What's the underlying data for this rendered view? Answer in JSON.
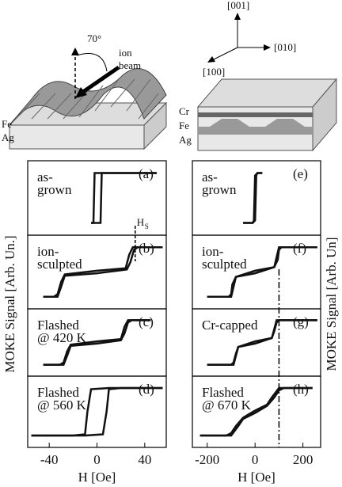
{
  "illustration": {
    "angle": "70°",
    "beam": [
      "ion",
      "beam"
    ],
    "left_layers": [
      "Fe",
      "Ag"
    ],
    "right_layers": [
      "Cr",
      "Fe",
      "Ag"
    ],
    "axes": [
      "[001]",
      "[010]",
      "[100]"
    ]
  },
  "chart_data": [
    {
      "type": "line",
      "ylabel": "MOKE Signal [Arb. Un.]",
      "xlabel": "H [Oe]",
      "xlim": [
        -58,
        58
      ],
      "xticks": [
        -40,
        0,
        40
      ],
      "ylim": [
        -1.3,
        1.3
      ],
      "color": "#111111",
      "marker": {
        "x": 32,
        "label": "H",
        "subscript": "S"
      },
      "panels": [
        {
          "label": "(a)",
          "annotation": [
            "as-",
            "grown"
          ],
          "series": [
            {
              "x": [
                -5,
                0,
                3,
                4,
                5,
                20,
                50
              ],
              "values": [
                -1,
                -1,
                -1,
                1,
                1,
                1,
                1
              ]
            },
            {
              "x": [
                50,
                20,
                0,
                -2,
                -3,
                -5
              ],
              "values": [
                1,
                1,
                1,
                1,
                -1,
                -1
              ]
            }
          ]
        },
        {
          "label": "(b)",
          "annotation": [
            "ion-",
            "sculpted"
          ],
          "series": [
            {
              "x": [
                -45,
                -33,
                -30,
                -27,
                0,
                25,
                28,
                31,
                34,
                55
              ],
              "values": [
                -1,
                -1,
                -0.6,
                -0.15,
                -0.05,
                0.1,
                0.4,
                0.9,
                1,
                1
              ]
            },
            {
              "x": [
                55,
                30,
                27,
                24,
                0,
                -27,
                -30,
                -33,
                -36,
                -45
              ],
              "values": [
                1,
                1,
                0.7,
                0.15,
                0.05,
                -0.1,
                -0.4,
                -0.9,
                -1,
                -1
              ]
            }
          ]
        },
        {
          "label": "(c)",
          "annotation": [
            "Flashed",
            "@ 420 K"
          ],
          "series": [
            {
              "x": [
                -45,
                -28,
                -25,
                -22,
                0,
                20,
                23,
                26,
                29,
                45
              ],
              "values": [
                -1,
                -1,
                -0.6,
                -0.15,
                -0.05,
                0.1,
                0.4,
                0.9,
                1,
                1
              ]
            },
            {
              "x": [
                45,
                26,
                23,
                20,
                0,
                -22,
                -25,
                -28,
                -31,
                -45
              ],
              "values": [
                1,
                1,
                0.7,
                0.15,
                0.05,
                -0.1,
                -0.4,
                -0.9,
                -1,
                -1
              ]
            }
          ]
        },
        {
          "label": "(d)",
          "annotation": [
            "Flashed",
            "@ 560 K"
          ],
          "series": [
            {
              "x": [
                -55,
                -10,
                5,
                8,
                10,
                20,
                55
              ],
              "values": [
                -1,
                -1,
                -0.95,
                0,
                0.95,
                1,
                1
              ]
            },
            {
              "x": [
                55,
                10,
                -5,
                -8,
                -10,
                -20,
                -55
              ],
              "values": [
                1,
                1,
                0.95,
                0,
                -0.95,
                -1,
                -1
              ]
            }
          ]
        }
      ]
    },
    {
      "type": "line",
      "ylabel": "MOKE Signal [Arb. Un]",
      "xlabel": "H [Oe]",
      "xlim": [
        -262,
        274
      ],
      "xticks": [
        -200,
        0,
        200
      ],
      "ylim": [
        -1.3,
        1.3
      ],
      "color": "#111111",
      "marker": {
        "x": 100
      },
      "panels": [
        {
          "label": "(e)",
          "annotation": [
            "as-",
            "grown"
          ],
          "series": [
            {
              "x": [
                -50,
                -10,
                0,
                5,
                10,
                30
              ],
              "values": [
                -1,
                -1,
                -0.9,
                0.9,
                1,
                1
              ]
            },
            {
              "x": [
                30,
                10,
                0,
                -5,
                -10,
                -50
              ],
              "values": [
                1,
                1,
                0.9,
                -0.9,
                -1,
                -1
              ]
            }
          ]
        },
        {
          "label": "(f)",
          "annotation": [
            "ion-",
            "sculpted"
          ],
          "series": [
            {
              "x": [
                -200,
                -100,
                -90,
                -80,
                0,
                80,
                95,
                100,
                110,
                260
              ],
              "values": [
                -1,
                -1,
                -0.6,
                -0.2,
                -0.05,
                0.2,
                0.5,
                0.9,
                1,
                1
              ]
            },
            {
              "x": [
                260,
                100,
                90,
                80,
                0,
                -80,
                -95,
                -100,
                -110,
                -200
              ],
              "values": [
                1,
                1,
                0.6,
                0.2,
                0.05,
                -0.2,
                -0.5,
                -0.9,
                -1,
                -1
              ]
            }
          ]
        },
        {
          "label": "(g)",
          "annotation": [
            "Cr-capped"
          ],
          "series": [
            {
              "x": [
                -200,
                -90,
                -80,
                -70,
                0,
                70,
                80,
                90,
                100,
                260
              ],
              "values": [
                -1,
                -1,
                -0.6,
                -0.2,
                -0.05,
                0.2,
                0.5,
                0.9,
                1,
                1
              ]
            },
            {
              "x": [
                260,
                90,
                80,
                70,
                0,
                -70,
                -80,
                -90,
                -100,
                -200
              ],
              "values": [
                1,
                1,
                0.6,
                0.2,
                0.05,
                -0.2,
                -0.5,
                -0.9,
                -1,
                -1
              ]
            }
          ]
        },
        {
          "label": "(h)",
          "annotation": [
            "Flashed",
            "@ 670 K"
          ],
          "series": [
            {
              "x": [
                -230,
                -100,
                -70,
                -50,
                0,
                50,
                80,
                100,
                120,
                240
              ],
              "values": [
                -1,
                -1,
                -0.6,
                -0.3,
                -0.05,
                0.25,
                0.6,
                0.9,
                1,
                1
              ]
            },
            {
              "x": [
                240,
                100,
                70,
                50,
                0,
                -50,
                -80,
                -100,
                -120,
                -230
              ],
              "values": [
                1,
                1,
                0.6,
                0.3,
                0.05,
                -0.25,
                -0.6,
                -0.9,
                -1,
                -1
              ]
            }
          ]
        }
      ]
    }
  ]
}
